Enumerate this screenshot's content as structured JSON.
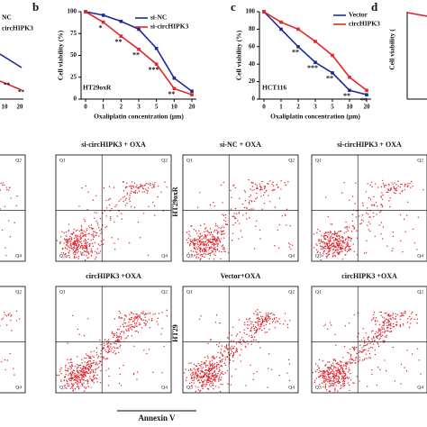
{
  "chart_data": [
    {
      "type": "line",
      "label": "b",
      "cell_line": "HT29oxR",
      "xlabel": "Oxaliplatin concentration (μm)",
      "ylabel": "Cell viability (%)",
      "categories": [
        "0",
        "1",
        "2",
        "3",
        "5",
        "10",
        "20"
      ],
      "ylim": [
        0,
        100
      ],
      "yticks": [
        0,
        25,
        50,
        75,
        100
      ],
      "series": [
        {
          "name": "si-NC",
          "color": "#1c2a9c",
          "values": [
            100,
            96,
            89,
            80,
            58,
            24,
            9
          ]
        },
        {
          "name": "si-circHIPK3",
          "color": "#e3242b",
          "values": [
            100,
            88,
            72,
            57,
            40,
            12,
            5
          ]
        }
      ],
      "annotations": [
        null,
        "*",
        "**",
        "**",
        "***",
        "**",
        null
      ]
    },
    {
      "type": "line",
      "label": "c",
      "cell_line": "HCT116",
      "xlabel": "Oxaliplatin concentration (μm)",
      "ylabel": "Cell viability (%)",
      "categories": [
        "0",
        "1",
        "2",
        "3",
        "5",
        "10",
        "20"
      ],
      "ylim": [
        0,
        100
      ],
      "yticks": [
        0,
        20,
        40,
        60,
        80,
        100
      ],
      "series": [
        {
          "name": "Vector",
          "color": "#1c2a9c",
          "values": [
            100,
            80,
            60,
            42,
            30,
            10,
            5
          ]
        },
        {
          "name": "circHIPK3",
          "color": "#e3242b",
          "values": [
            100,
            88,
            80,
            66,
            50,
            25,
            10
          ]
        }
      ],
      "annotations": [
        null,
        null,
        "**",
        "***",
        "**",
        "**",
        "**"
      ]
    }
  ],
  "fragment_a": {
    "legend": [
      "NC",
      "circHIPK3"
    ],
    "xticks": [
      "10",
      "20"
    ],
    "annotations": [
      "**",
      "**"
    ]
  },
  "fragment_d": {
    "label": "d",
    "ylabel": "Cell viability ("
  },
  "flow": {
    "titles": [
      "si-circHIPK3 + OXA",
      "si-NC + OXA",
      "si-circHIPK3 + OXA",
      "circHIPK3 +OXA",
      "Vector+OXA",
      "circHIPK3 +OXA"
    ],
    "row_labels": [
      "HT29oxR",
      "HT29"
    ],
    "quadrants": [
      "Q1",
      "Q2",
      "Q3",
      "Q4"
    ],
    "xlabel": "Annexin V"
  }
}
